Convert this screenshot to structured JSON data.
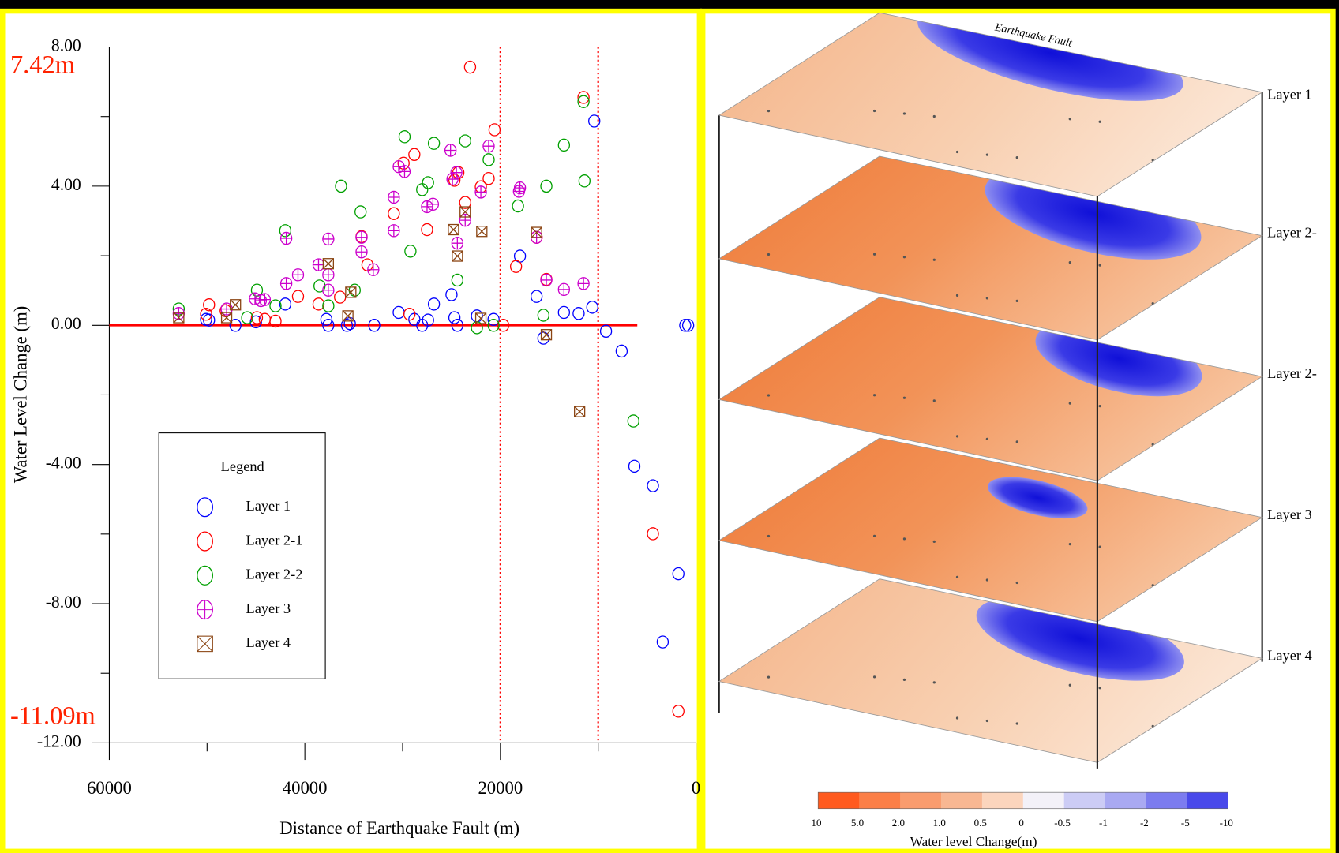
{
  "chart_data": {
    "type": "scatter",
    "x_label": "Distance of Earthquake Fault (m)",
    "y_label": "Water Level Change (m)",
    "xlim": [
      60000,
      0
    ],
    "ylim": [
      -12,
      8
    ],
    "xticks": [
      60000,
      40000,
      20000,
      0
    ],
    "minor_xticks": [
      50000,
      30000,
      10000
    ],
    "yticks": [
      {
        "value": 8,
        "label": "8.00"
      },
      {
        "value": 4,
        "label": "4.00"
      },
      {
        "value": 0,
        "label": "0.00"
      },
      {
        "value": -4,
        "label": "-4.00"
      },
      {
        "value": -8,
        "label": "-8.00"
      },
      {
        "value": -12,
        "label": "-12.00"
      }
    ],
    "minor_yticks": [
      6,
      2,
      -2,
      -6,
      -10
    ],
    "reference_lines": {
      "horizontal": 0,
      "horizontal_span": [
        60000,
        6000
      ],
      "horizontal_color": "#ff0000",
      "vertical": [
        20000,
        10000
      ],
      "vertical_color": "#ff0000"
    },
    "annotations": [
      {
        "text": "7.42m",
        "y": 7.42,
        "color": "#ff2200"
      },
      {
        "text": "-11.09m",
        "y": -11.09,
        "color": "#ff2200"
      }
    ],
    "legend_title": "Legend",
    "series": [
      {
        "name": "Layer 1",
        "color": "#0000ff",
        "marker": "circle",
        "x": [
          50100,
          49800,
          47100,
          45000,
          42000,
          37800,
          37600,
          35700,
          35400,
          32900,
          30400,
          28800,
          28000,
          27400,
          26800,
          25000,
          24700,
          24400,
          22400,
          20700,
          18000,
          16300,
          15600,
          13500,
          12000,
          10600,
          10400,
          9200,
          7600,
          6300,
          4400,
          3400,
          1800,
          1100,
          800
        ],
        "values": [
          0.17,
          0.15,
          0,
          0.1,
          0.61,
          0.17,
          0,
          0,
          0.05,
          0,
          0.37,
          0.17,
          0,
          0.15,
          0.61,
          0.88,
          0.22,
          0,
          0.27,
          0.17,
          1.99,
          0.83,
          -0.37,
          0.37,
          0.34,
          0.52,
          5.87,
          -0.17,
          -0.74,
          -4.05,
          -4.61,
          -9.1,
          -7.14,
          0,
          0
        ]
      },
      {
        "name": "Layer 2-1",
        "color": "#ff0000",
        "marker": "circle",
        "x": [
          50100,
          49800,
          48100,
          44900,
          44100,
          43000,
          40700,
          38600,
          36400,
          34200,
          33600,
          30900,
          29900,
          29300,
          28800,
          27500,
          24700,
          24300,
          23600,
          23100,
          22000,
          21200,
          20600,
          19700,
          18400,
          16300,
          15300,
          11500,
          4400,
          1800
        ],
        "values": [
          0.32,
          0.59,
          0.42,
          0.22,
          0.17,
          0.12,
          0.83,
          0.61,
          0.81,
          2.55,
          1.74,
          3.21,
          4.66,
          0.32,
          4.91,
          2.75,
          4.17,
          4.39,
          3.53,
          7.42,
          3.98,
          4.22,
          5.62,
          0,
          1.69,
          2.53,
          1.32,
          6.55,
          -5.99,
          -11.09
        ]
      },
      {
        "name": "Layer 2-2",
        "color": "#00a000",
        "marker": "circle",
        "x": [
          52900,
          45900,
          44900,
          43000,
          42000,
          38500,
          37600,
          36300,
          34900,
          34300,
          29800,
          29200,
          28000,
          27400,
          26800,
          24400,
          23600,
          22400,
          21200,
          20700,
          18200,
          15600,
          15300,
          13500,
          11500,
          11400,
          6400
        ],
        "values": [
          0.47,
          0.22,
          1.01,
          0.56,
          2.72,
          1.13,
          0.56,
          4.0,
          1.01,
          3.26,
          5.42,
          2.13,
          3.9,
          4.1,
          5.23,
          1.3,
          5.3,
          -0.07,
          4.76,
          0,
          3.43,
          0.29,
          4.0,
          5.18,
          6.43,
          4.15,
          -2.75
        ]
      },
      {
        "name": "Layer 3",
        "color": "#cc00cc",
        "marker": "circle-cross",
        "x": [
          52900,
          48000,
          45100,
          44500,
          44100,
          41900,
          41900,
          40700,
          38600,
          37600,
          37600,
          37600,
          34200,
          34200,
          33000,
          30900,
          30900,
          30400,
          29800,
          27500,
          26900,
          25100,
          24900,
          24500,
          24400,
          23600,
          22000,
          21200,
          18100,
          18000,
          16300,
          15300,
          13500,
          11500
        ],
        "values": [
          0.34,
          0.47,
          0.76,
          0.71,
          0.74,
          2.5,
          1.2,
          1.45,
          1.74,
          2.48,
          1.45,
          1.01,
          2.53,
          2.11,
          1.6,
          3.68,
          2.72,
          4.56,
          4.42,
          3.41,
          3.48,
          5.03,
          4.2,
          4.39,
          2.36,
          3.02,
          3.83,
          5.15,
          3.85,
          3.95,
          2.53,
          1.3,
          1.03,
          1.2
        ]
      },
      {
        "name": "Layer 4",
        "color": "#8b4513",
        "marker": "box-x",
        "x": [
          52900,
          48000,
          47100,
          37600,
          35600,
          35300,
          24800,
          24400,
          23600,
          21900,
          22000,
          16300,
          15300,
          11900
        ],
        "values": [
          0.22,
          0.22,
          0.59,
          1.77,
          0.27,
          0.95,
          2.75,
          1.99,
          3.26,
          2.7,
          0.2,
          2.67,
          -0.27,
          -2.48
        ]
      }
    ]
  },
  "map": {
    "fault_label": "Earthquake Fault",
    "layers": [
      "Layer 1",
      "Layer 2-",
      "Layer 2-",
      "Layer 3",
      "Layer 4"
    ],
    "colorbar": {
      "title": "Water level Change(m)",
      "labels": [
        "10",
        "5.0",
        "2.0",
        "1.0",
        "0.5",
        "0",
        "-0.5",
        "-1",
        "-2",
        "-5",
        "-10"
      ],
      "colors": [
        "#ff5a1e",
        "#fb7f47",
        "#f99c6e",
        "#f8b792",
        "#fbd5bd",
        "#f3f1f8",
        "#ccccf5",
        "#a9a9f2",
        "#7c7cef",
        "#4949ea"
      ]
    }
  }
}
